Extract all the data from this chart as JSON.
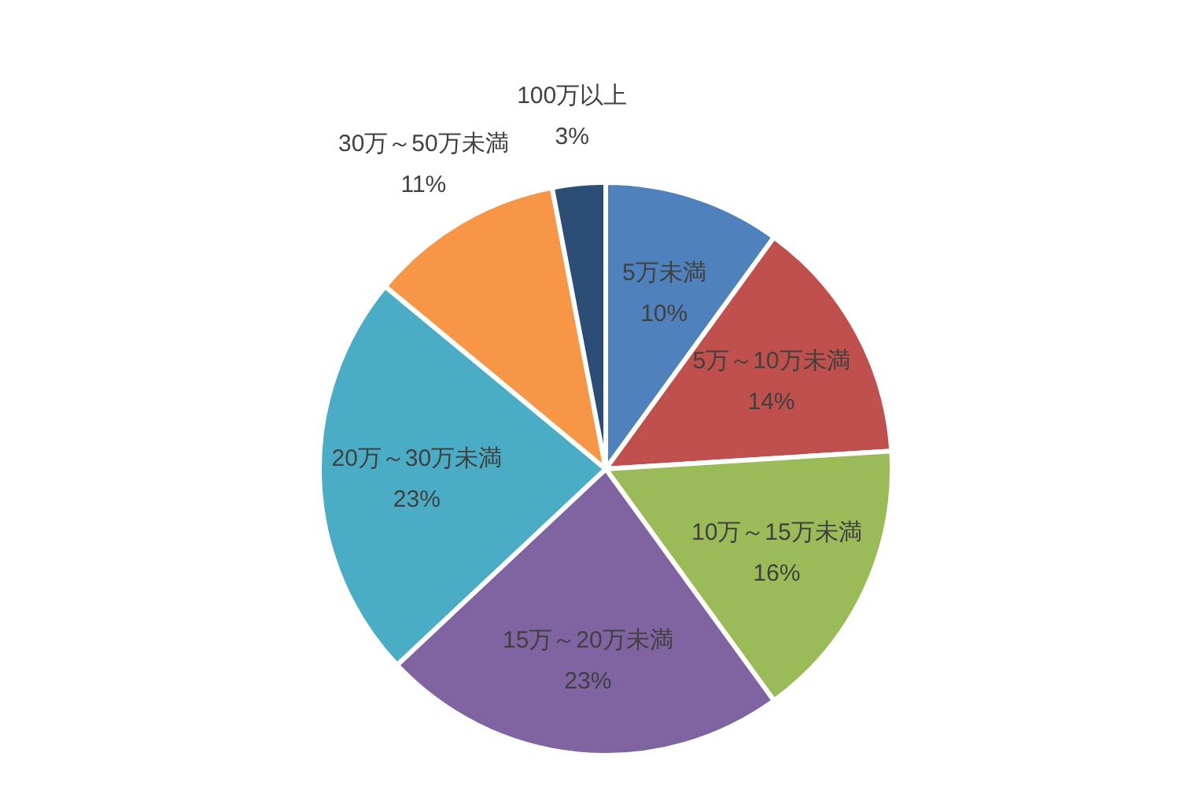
{
  "chart_data": {
    "type": "pie",
    "categories": [
      "5万未満",
      "5万～10万未満",
      "10万～15万未満",
      "15万～20万未満",
      "20万～30万未満",
      "30万～50万未満",
      "100万以上"
    ],
    "values": [
      10,
      14,
      16,
      23,
      23,
      11,
      3
    ],
    "colors": [
      "#4f81bd",
      "#c0504d",
      "#9bbb59",
      "#8064a2",
      "#4bacc6",
      "#f79646",
      "#2c4d75"
    ],
    "value_labels": [
      "10%",
      "14%",
      "16%",
      "23%",
      "23%",
      "11%",
      "3%"
    ]
  }
}
